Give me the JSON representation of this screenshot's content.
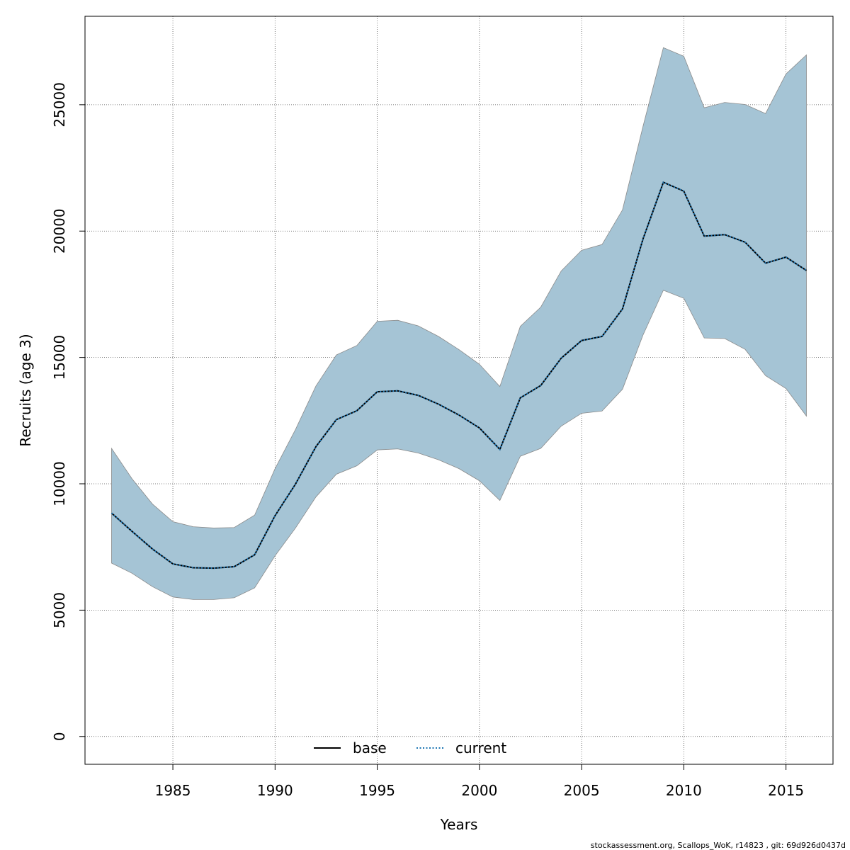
{
  "chart_data": {
    "type": "area",
    "xlabel": "Years",
    "ylabel": "Recruits (age 3)",
    "xlim": [
      1980.7,
      2017.3
    ],
    "ylim": [
      -1100,
      28500
    ],
    "x_ticks": [
      1985,
      1990,
      1995,
      2000,
      2005,
      2010,
      2015
    ],
    "y_ticks": [
      0,
      5000,
      10000,
      15000,
      20000,
      25000
    ],
    "grid": true,
    "legend_position": "bottom",
    "x": [
      1982,
      1983,
      1984,
      1985,
      1986,
      1987,
      1988,
      1989,
      1990,
      1991,
      1992,
      1993,
      1994,
      1995,
      1996,
      1997,
      1998,
      1999,
      2000,
      2001,
      2002,
      2003,
      2004,
      2005,
      2006,
      2007,
      2008,
      2009,
      2010,
      2011,
      2012,
      2013,
      2014,
      2015,
      2016
    ],
    "band": {
      "color": "#a5c4d5",
      "upper": [
        11400,
        10200,
        9200,
        8500,
        8300,
        8250,
        8270,
        8760,
        10600,
        12150,
        13870,
        15100,
        15470,
        16430,
        16470,
        16250,
        15830,
        15310,
        14730,
        13850,
        16230,
        16990,
        18420,
        19240,
        19470,
        20840,
        24130,
        27260,
        26920,
        24880,
        25090,
        25010,
        24650,
        26220,
        26970
      ],
      "lower": [
        6860,
        6460,
        5930,
        5520,
        5420,
        5420,
        5490,
        5880,
        7150,
        8250,
        9480,
        10380,
        10710,
        11340,
        11380,
        11220,
        10950,
        10600,
        10120,
        9340,
        11090,
        11400,
        12280,
        12790,
        12880,
        13740,
        15880,
        17660,
        17340,
        15770,
        15750,
        15320,
        14280,
        13770,
        12680
      ]
    },
    "series": [
      {
        "name": "base",
        "color": "#000000",
        "style": "solid",
        "values": [
          8840,
          8120,
          7420,
          6830,
          6680,
          6660,
          6720,
          7190,
          8740,
          9990,
          11470,
          12540,
          12890,
          13640,
          13680,
          13500,
          13150,
          12720,
          12210,
          11360,
          13400,
          13890,
          14970,
          15670,
          15830,
          16920,
          19680,
          21930,
          21580,
          19800,
          19860,
          19560,
          18730,
          18970,
          18440
        ]
      },
      {
        "name": "current",
        "color": "#1f77b4",
        "style": "dotted",
        "values": [
          8840,
          8120,
          7420,
          6830,
          6680,
          6660,
          6720,
          7190,
          8740,
          9990,
          11470,
          12540,
          12890,
          13640,
          13680,
          13500,
          13150,
          12720,
          12210,
          11360,
          13400,
          13890,
          14970,
          15670,
          15830,
          16920,
          19680,
          21930,
          21580,
          19800,
          19860,
          19560,
          18730,
          18970,
          18440
        ]
      }
    ]
  },
  "legend": {
    "base_label": "base",
    "current_label": "current"
  },
  "footer": {
    "text": "stockassessment.org, Scallops_WoK, r14823 , git: 69d926d0437d"
  }
}
